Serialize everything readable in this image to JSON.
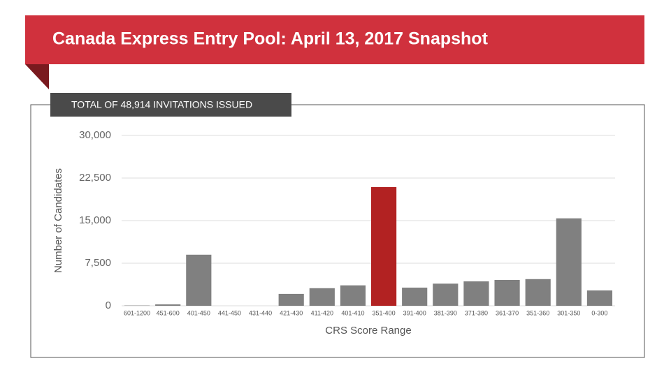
{
  "chart_data": {
    "type": "bar",
    "title": "Canada Express Entry Pool: April 13, 2017 Snapshot",
    "subtitle": "TOTAL OF 48,914 INVITATIONS ISSUED",
    "x_label": "CRS Score Range",
    "y_label": "Number of Candidates",
    "categories": [
      "601-1200",
      "451-600",
      "401-450",
      "441-450",
      "431-440",
      "421-430",
      "411-420",
      "401-410",
      "351-400",
      "391-400",
      "381-390",
      "371-380",
      "361-370",
      "351-360",
      "301-350",
      "0-300"
    ],
    "values": [
      50,
      250,
      9000,
      0,
      0,
      2100,
      3100,
      3600,
      20900,
      3200,
      3900,
      4300,
      4550,
      4700,
      15400,
      2700
    ],
    "colors": [
      "#808080",
      "#808080",
      "#808080",
      "#808080",
      "#808080",
      "#808080",
      "#808080",
      "#808080",
      "#b22222",
      "#808080",
      "#808080",
      "#808080",
      "#808080",
      "#808080",
      "#808080",
      "#808080"
    ],
    "ylim": [
      0,
      30000
    ],
    "yticks": [
      0,
      {
        "value": 7500,
        "label": "7,500"
      },
      {
        "value": 15000,
        "label": "15,000"
      },
      {
        "value": 22500,
        "label": "22,500"
      },
      {
        "value": 30000,
        "label": "30,000"
      }
    ],
    "grid": true
  }
}
